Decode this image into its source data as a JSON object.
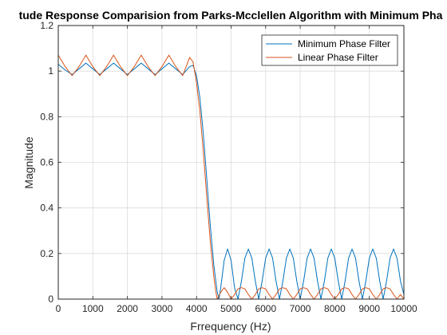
{
  "chart_data": {
    "type": "line",
    "title": "tude Response Comparision from Parks-Mcclellen Algorithm with Minimum Pha",
    "xlabel": "Frrequency (Hz)",
    "ylabel": "Magnitude",
    "xlim": [
      0,
      10000
    ],
    "ylim": [
      0,
      1.2
    ],
    "xticks": [
      0,
      1000,
      2000,
      3000,
      4000,
      5000,
      6000,
      7000,
      8000,
      9000,
      10000
    ],
    "yticks": [
      0,
      0.2,
      0.4,
      0.6,
      0.8,
      1,
      1.2
    ],
    "xtick_labels": [
      "0",
      "1000",
      "2000",
      "3000",
      "4000",
      "5000",
      "6000",
      "7000",
      "8000",
      "9000",
      "10000"
    ],
    "ytick_labels": [
      "0",
      "0.2",
      "0.4",
      "0.6",
      "0.8",
      "1",
      "1.2"
    ],
    "grid": true,
    "legend_position": "top-right",
    "series": [
      {
        "name": "Minimum Phase Filter",
        "color": "#0072BD",
        "x": [
          0,
          200,
          400,
          600,
          800,
          1000,
          1200,
          1400,
          1600,
          1800,
          2000,
          2200,
          2400,
          2600,
          2800,
          3000,
          3200,
          3400,
          3600,
          3800,
          3900,
          4000,
          4100,
          4200,
          4300,
          4400,
          4500,
          4600,
          4650,
          4700,
          4800,
          4900,
          5000,
          5100,
          5200,
          5300,
          5400,
          5500,
          5600,
          5700,
          5800,
          5900,
          6000,
          6100,
          6200,
          6300,
          6400,
          6500,
          6600,
          6700,
          6800,
          6900,
          7000,
          7100,
          7200,
          7300,
          7400,
          7500,
          7600,
          7700,
          7800,
          7900,
          8000,
          8100,
          8200,
          8300,
          8400,
          8500,
          8600,
          8700,
          8800,
          8900,
          9000,
          9100,
          9200,
          9300,
          9400,
          9500,
          9600,
          9700,
          9800,
          9900,
          10000
        ],
        "y": [
          1.03,
          1.005,
          0.985,
          1.01,
          1.035,
          1.01,
          0.985,
          1.01,
          1.035,
          1.01,
          0.985,
          1.01,
          1.035,
          1.01,
          0.985,
          1.01,
          1.035,
          1.01,
          0.985,
          1.02,
          1.025,
          0.98,
          0.88,
          0.72,
          0.52,
          0.32,
          0.15,
          0.03,
          0.0,
          0.05,
          0.17,
          0.22,
          0.17,
          0.05,
          0.0,
          0.08,
          0.18,
          0.22,
          0.18,
          0.08,
          0.0,
          0.08,
          0.18,
          0.22,
          0.18,
          0.08,
          0.0,
          0.08,
          0.18,
          0.22,
          0.18,
          0.08,
          0.0,
          0.08,
          0.18,
          0.22,
          0.18,
          0.08,
          0.0,
          0.08,
          0.18,
          0.22,
          0.18,
          0.08,
          0.0,
          0.08,
          0.18,
          0.22,
          0.18,
          0.08,
          0.0,
          0.08,
          0.18,
          0.22,
          0.18,
          0.08,
          0.0,
          0.08,
          0.18,
          0.22,
          0.18,
          0.08,
          0.02
        ]
      },
      {
        "name": "Linear Phase Filter",
        "color": "#D95319",
        "x": [
          0,
          200,
          400,
          600,
          800,
          1000,
          1200,
          1400,
          1600,
          1800,
          2000,
          2200,
          2400,
          2600,
          2800,
          3000,
          3200,
          3400,
          3600,
          3800,
          3900,
          4000,
          4100,
          4200,
          4300,
          4400,
          4500,
          4550,
          4600,
          4700,
          4800,
          4900,
          5000,
          5100,
          5200,
          5300,
          5400,
          5500,
          5600,
          5700,
          5800,
          5900,
          6000,
          6100,
          6200,
          6300,
          6400,
          6500,
          6600,
          6700,
          6800,
          6900,
          7000,
          7100,
          7200,
          7300,
          7400,
          7500,
          7600,
          7700,
          7800,
          7900,
          8000,
          8100,
          8200,
          8300,
          8400,
          8500,
          8600,
          8700,
          8800,
          8900,
          9000,
          9100,
          9200,
          9300,
          9400,
          9500,
          9600,
          9700,
          9800,
          9900,
          10000
        ],
        "y": [
          1.07,
          1.02,
          0.98,
          1.02,
          1.07,
          1.02,
          0.98,
          1.02,
          1.07,
          1.02,
          0.98,
          1.02,
          1.07,
          1.02,
          0.98,
          1.02,
          1.07,
          1.02,
          0.98,
          1.06,
          1.04,
          0.95,
          0.82,
          0.64,
          0.44,
          0.25,
          0.1,
          0.04,
          0.0,
          0.03,
          0.05,
          0.03,
          0.0,
          0.02,
          0.045,
          0.05,
          0.045,
          0.02,
          0.0,
          0.02,
          0.045,
          0.05,
          0.045,
          0.02,
          0.0,
          0.02,
          0.045,
          0.05,
          0.045,
          0.02,
          0.0,
          0.02,
          0.045,
          0.05,
          0.045,
          0.02,
          0.0,
          0.02,
          0.045,
          0.05,
          0.045,
          0.02,
          0.0,
          0.02,
          0.045,
          0.05,
          0.045,
          0.02,
          0.0,
          0.02,
          0.045,
          0.05,
          0.045,
          0.02,
          0.0,
          0.02,
          0.045,
          0.05,
          0.045,
          0.02,
          0.0,
          0.02,
          0.0
        ]
      }
    ]
  }
}
